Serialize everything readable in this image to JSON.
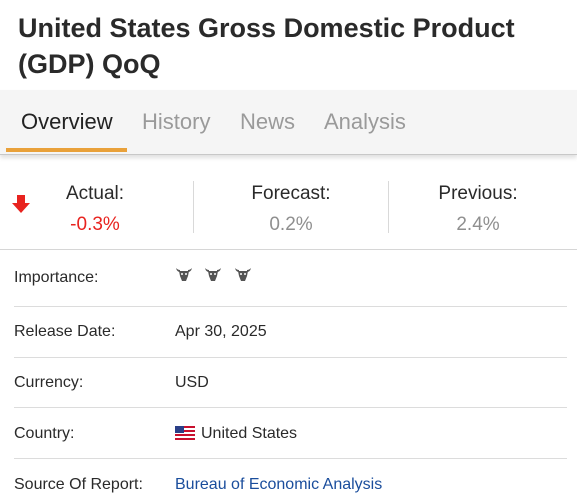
{
  "header": {
    "title": "United States Gross Domestic Product (GDP) QoQ"
  },
  "tabs": [
    {
      "label": "Overview",
      "active": true
    },
    {
      "label": "History",
      "active": false
    },
    {
      "label": "News",
      "active": false
    },
    {
      "label": "Analysis",
      "active": false
    }
  ],
  "stats": {
    "actual": {
      "label": "Actual:",
      "value": "-0.3%",
      "direction_icon": "down-arrow-icon",
      "color": "#e8231f"
    },
    "forecast": {
      "label": "Forecast:",
      "value": "0.2%"
    },
    "previous": {
      "label": "Previous:",
      "value": "2.4%"
    }
  },
  "details": {
    "importance": {
      "label": "Importance:",
      "icon": "bull-icon",
      "level": 3,
      "max": 3
    },
    "release_date": {
      "label": "Release Date:",
      "value": "Apr 30, 2025"
    },
    "currency": {
      "label": "Currency:",
      "value": "USD"
    },
    "country": {
      "label": "Country:",
      "value": "United States",
      "icon": "us-flag-icon"
    },
    "source": {
      "label": "Source Of Report:",
      "value": "Bureau of Economic Analysis",
      "link_color": "#1a4d9c"
    }
  }
}
